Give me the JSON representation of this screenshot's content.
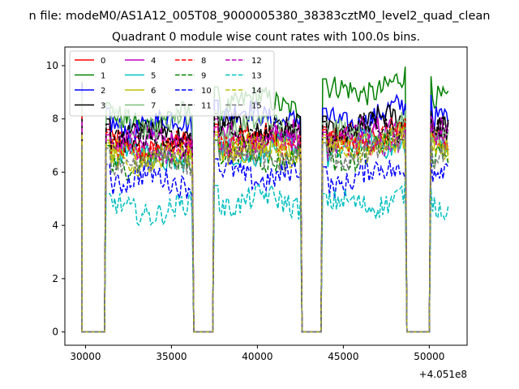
{
  "chart_data": {
    "type": "line",
    "suptitle": "n file: modeM0/AS1A12_005T08_9000005380_38383cztM0_level2_quad_clean",
    "title": "Quadrant 0 module wise count rates with 100.0s bins.",
    "xlabel": "",
    "ylabel": "",
    "x_offset_label": "+4.051e8",
    "xlim": [
      28800,
      52200
    ],
    "ylim": [
      -0.5,
      10.7
    ],
    "x_ticks": [
      30000,
      35000,
      40000,
      45000,
      50000
    ],
    "x_tick_labels": [
      "30000",
      "35000",
      "40000",
      "45000",
      "50000"
    ],
    "y_ticks": [
      0,
      2,
      4,
      6,
      8,
      10
    ],
    "y_tick_labels": [
      "0",
      "2",
      "4",
      "6",
      "8",
      "10"
    ],
    "grid": false,
    "legend_position": "top-left",
    "segments": [
      [
        29800,
        31100
      ],
      [
        31200,
        36200
      ],
      [
        36300,
        37400
      ],
      [
        37500,
        42500
      ],
      [
        42600,
        43700
      ],
      [
        43800,
        48600
      ],
      [
        48700,
        50000
      ],
      [
        50100,
        51100
      ]
    ],
    "active_segments": [
      1,
      3,
      5,
      7
    ],
    "series": [
      {
        "name": "0",
        "color": "#ff0000",
        "style": "solid",
        "levels": [
          7.0,
          7.2,
          7.1,
          7.3
        ],
        "start": 8.4
      },
      {
        "name": "1",
        "color": "#008000",
        "style": "solid",
        "levels": [
          8.0,
          8.6,
          8.9,
          9.0
        ],
        "start": 9.4
      },
      {
        "name": "2",
        "color": "#0000ff",
        "style": "solid",
        "levels": [
          7.8,
          8.1,
          7.8,
          8.3
        ],
        "start": 9.3
      },
      {
        "name": "3",
        "color": "#000000",
        "style": "solid",
        "levels": [
          7.4,
          7.6,
          7.5,
          7.7
        ],
        "start": 8.0
      },
      {
        "name": "4",
        "color": "#bf00bf",
        "style": "solid",
        "levels": [
          7.2,
          7.4,
          7.3,
          7.5
        ],
        "start": 8.2
      },
      {
        "name": "5",
        "color": "#00bfbf",
        "style": "solid",
        "levels": [
          6.6,
          6.8,
          6.7,
          6.9
        ],
        "start": 7.8
      },
      {
        "name": "6",
        "color": "#bfbf00",
        "style": "solid",
        "levels": [
          6.6,
          6.9,
          6.8,
          7.0
        ],
        "start": 7.6
      },
      {
        "name": "7",
        "color": "#7fbf7f",
        "style": "solid",
        "levels": [
          7.9,
          7.7,
          7.3,
          7.4
        ],
        "start": 9.0
      },
      {
        "name": "8",
        "color": "#ff0000",
        "style": "dashed",
        "levels": [
          6.9,
          7.1,
          7.0,
          7.2
        ],
        "start": 8.1
      },
      {
        "name": "9",
        "color": "#008000",
        "style": "dashed",
        "levels": [
          6.4,
          6.6,
          6.5,
          6.7
        ],
        "start": 7.5
      },
      {
        "name": "10",
        "color": "#0000ff",
        "style": "dashed",
        "levels": [
          5.7,
          5.9,
          5.6,
          6.0
        ],
        "start": 6.2
      },
      {
        "name": "11",
        "color": "#000000",
        "style": "dashed",
        "levels": [
          7.2,
          7.5,
          7.3,
          7.4
        ],
        "start": 8.0
      },
      {
        "name": "12",
        "color": "#bf00bf",
        "style": "dashed",
        "levels": [
          6.8,
          7.1,
          6.9,
          7.2
        ],
        "start": 7.9
      },
      {
        "name": "13",
        "color": "#00bfbf",
        "style": "dashed",
        "levels": [
          4.6,
          4.9,
          4.6,
          4.8
        ],
        "start": 5.4
      },
      {
        "name": "14",
        "color": "#bfbf00",
        "style": "dashed",
        "levels": [
          6.5,
          6.8,
          6.7,
          6.9
        ],
        "start": 7.4
      },
      {
        "name": "15",
        "color": "#7f7f7f",
        "style": "dashed",
        "levels": [
          6.3,
          6.6,
          6.5,
          6.7
        ],
        "start": 7.0
      }
    ]
  }
}
